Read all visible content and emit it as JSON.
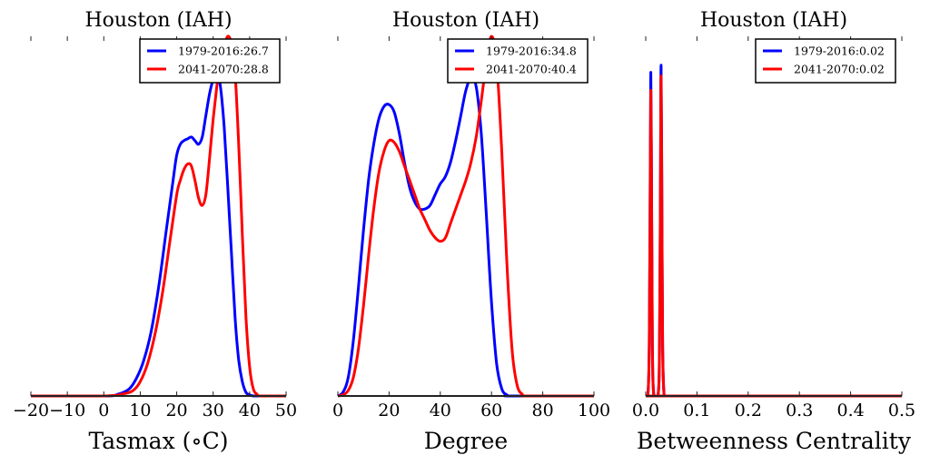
{
  "colors": {
    "historical": "#0000ff",
    "future": "#ff0000",
    "axis": "#222222"
  },
  "chart_data": [
    {
      "type": "line",
      "title": "Houston (IAH)",
      "xlabel": "Tasmax ($^\\circ$C)",
      "xlabel_display": "Tasmax (∘C)",
      "ylabel": "",
      "xlim": [
        -20,
        50
      ],
      "ylim": [
        0,
        1
      ],
      "xticks": [
        -20,
        -10,
        0,
        10,
        20,
        30,
        40,
        50
      ],
      "xtick_labels": [
        "−20",
        "−10",
        "0",
        "10",
        "20",
        "30",
        "40",
        "50"
      ],
      "legend_position": "upper-right",
      "series": [
        {
          "name": "1979-2016:26.7",
          "color": "#0000ff",
          "x": [
            -20,
            0,
            4,
            7,
            9,
            11,
            13,
            15,
            17,
            19,
            20,
            21,
            22,
            23,
            24,
            25,
            26,
            27,
            28,
            29,
            30,
            31,
            32,
            33,
            34,
            35,
            36,
            37,
            38,
            39,
            40,
            41,
            42,
            50
          ],
          "y": [
            0,
            0,
            0.005,
            0.02,
            0.05,
            0.1,
            0.18,
            0.3,
            0.45,
            0.6,
            0.67,
            0.7,
            0.71,
            0.715,
            0.72,
            0.71,
            0.7,
            0.72,
            0.78,
            0.84,
            0.88,
            0.9,
            0.86,
            0.75,
            0.58,
            0.4,
            0.22,
            0.1,
            0.04,
            0.01,
            0.003,
            0,
            0,
            0
          ]
        },
        {
          "name": "2041-2070:28.8",
          "color": "#ff0000",
          "x": [
            -20,
            0,
            5,
            8,
            10,
            12,
            14,
            16,
            18,
            20,
            21,
            22,
            23,
            24,
            25,
            26,
            27,
            28,
            29,
            30,
            31,
            32,
            33,
            34,
            35,
            36,
            37,
            38,
            39,
            40,
            41,
            42,
            43,
            50
          ],
          "y": [
            0,
            0,
            0.005,
            0.015,
            0.04,
            0.09,
            0.17,
            0.28,
            0.42,
            0.56,
            0.6,
            0.63,
            0.645,
            0.64,
            0.6,
            0.55,
            0.53,
            0.56,
            0.66,
            0.77,
            0.86,
            0.93,
            0.97,
            1.0,
            0.98,
            0.9,
            0.7,
            0.45,
            0.22,
            0.08,
            0.02,
            0.005,
            0,
            0
          ]
        }
      ]
    },
    {
      "type": "line",
      "title": "Houston (IAH)",
      "xlabel": "Degree",
      "ylabel": "",
      "xlim": [
        0,
        100
      ],
      "ylim": [
        0,
        1
      ],
      "xticks": [
        0,
        20,
        40,
        60,
        80,
        100
      ],
      "xtick_labels": [
        "0",
        "20",
        "40",
        "60",
        "80",
        "100"
      ],
      "legend_position": "upper-right",
      "series": [
        {
          "name": "1979-2016:34.8",
          "color": "#0000ff",
          "x": [
            0,
            2,
            4,
            6,
            8,
            10,
            12,
            14,
            16,
            18,
            20,
            22,
            24,
            26,
            28,
            30,
            32,
            34,
            36,
            38,
            40,
            42,
            44,
            46,
            48,
            50,
            52,
            54,
            56,
            58,
            60,
            62,
            64,
            66,
            68,
            100
          ],
          "y": [
            0,
            0.01,
            0.05,
            0.15,
            0.3,
            0.46,
            0.6,
            0.7,
            0.77,
            0.805,
            0.81,
            0.79,
            0.73,
            0.65,
            0.58,
            0.54,
            0.52,
            0.52,
            0.53,
            0.56,
            0.59,
            0.61,
            0.65,
            0.71,
            0.78,
            0.85,
            0.885,
            0.86,
            0.73,
            0.5,
            0.26,
            0.09,
            0.02,
            0.003,
            0,
            0
          ]
        },
        {
          "name": "2041-2070:40.4",
          "color": "#ff0000",
          "x": [
            0,
            2,
            4,
            6,
            8,
            10,
            12,
            14,
            16,
            18,
            20,
            22,
            24,
            26,
            28,
            30,
            32,
            34,
            36,
            38,
            40,
            42,
            44,
            46,
            48,
            50,
            52,
            54,
            56,
            58,
            60,
            62,
            64,
            66,
            68,
            70,
            72,
            74,
            100
          ],
          "y": [
            0,
            0.003,
            0.015,
            0.05,
            0.13,
            0.25,
            0.39,
            0.52,
            0.62,
            0.68,
            0.71,
            0.705,
            0.68,
            0.64,
            0.6,
            0.56,
            0.52,
            0.49,
            0.46,
            0.44,
            0.43,
            0.44,
            0.48,
            0.52,
            0.56,
            0.6,
            0.65,
            0.72,
            0.82,
            0.93,
            1.0,
            0.93,
            0.68,
            0.37,
            0.13,
            0.03,
            0.005,
            0,
            0
          ]
        }
      ]
    },
    {
      "type": "line",
      "title": "Houston (IAH)",
      "xlabel": "Betweenness Centrality",
      "ylabel": "",
      "xlim": [
        0,
        0.5
      ],
      "ylim": [
        0,
        1
      ],
      "xticks": [
        0.0,
        0.1,
        0.2,
        0.3,
        0.4,
        0.5
      ],
      "xtick_labels": [
        "0.0",
        "0.1",
        "0.2",
        "0.3",
        "0.4",
        "0.5"
      ],
      "legend_position": "upper-right",
      "series": [
        {
          "name": "1979-2016:0.02",
          "color": "#0000ff",
          "x": [
            0,
            0.004,
            0.007,
            0.009,
            0.01,
            0.011,
            0.013,
            0.016,
            0.024,
            0.027,
            0.029,
            0.03,
            0.031,
            0.033,
            0.036,
            0.04,
            0.5
          ],
          "y": [
            0,
            0,
            0.15,
            0.7,
            0.9,
            0.7,
            0.15,
            0,
            0,
            0.15,
            0.7,
            0.92,
            0.7,
            0.15,
            0,
            0,
            0
          ]
        },
        {
          "name": "2041-2070:0.02",
          "color": "#ff0000",
          "x": [
            0,
            0.004,
            0.007,
            0.009,
            0.01,
            0.011,
            0.013,
            0.016,
            0.024,
            0.027,
            0.029,
            0.03,
            0.031,
            0.033,
            0.036,
            0.04,
            0.5
          ],
          "y": [
            0,
            0,
            0.14,
            0.66,
            0.85,
            0.66,
            0.14,
            0,
            0,
            0.14,
            0.68,
            0.89,
            0.68,
            0.14,
            0,
            0,
            0
          ]
        }
      ]
    }
  ]
}
